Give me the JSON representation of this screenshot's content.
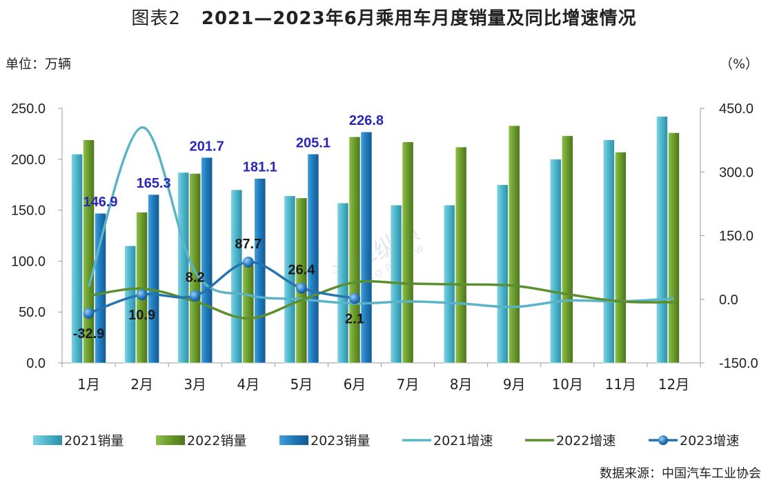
{
  "title": {
    "prefix": "图表2",
    "main": "2021—2023年6月乘用车月度销量及同比增速情况"
  },
  "unit_left": "单位：万辆",
  "unit_right": "（%）",
  "source": "数据来源：中国汽车工业协会",
  "watermark": {
    "cn": "汽车纵横",
    "en": "AUTO REVIEW"
  },
  "colors": {
    "s2021_bar": "#4bb3c9",
    "s2022_bar": "#6a9a2b",
    "s2023_bar": "#1f78b8",
    "s2021_line": "#5ab3c6",
    "s2022_line": "#5b8e2c",
    "s2023_line": "#2474b0"
  },
  "chart_data": {
    "type": "bar",
    "title": "2021—2023年6月乘用车月度销量及同比增速情况",
    "categories": [
      "1月",
      "2月",
      "3月",
      "4月",
      "5月",
      "6月",
      "7月",
      "8月",
      "9月",
      "10月",
      "11月",
      "12月"
    ],
    "ylim": [
      0,
      250
    ],
    "yticks": [
      "0.0",
      "50.0",
      "100.0",
      "150.0",
      "200.0",
      "250.0"
    ],
    "y2lim": [
      -150,
      450
    ],
    "y2ticks": [
      "-150.0",
      "0.0",
      "150.0",
      "300.0",
      "450.0"
    ],
    "series": [
      {
        "name": "2021销量",
        "kind": "bar",
        "values": [
          205,
          115,
          187,
          170,
          164,
          157,
          155,
          155,
          175,
          200,
          219,
          242
        ]
      },
      {
        "name": "2022销量",
        "kind": "bar",
        "values": [
          219,
          148,
          186,
          96,
          162,
          222,
          217,
          212,
          233,
          223,
          207,
          226
        ]
      },
      {
        "name": "2023销量",
        "kind": "bar",
        "values": [
          146.9,
          165.3,
          201.7,
          181.1,
          205.1,
          226.8,
          null,
          null,
          null,
          null,
          null,
          null
        ],
        "labels": [
          "146.9",
          "165.3",
          "201.7",
          "181.1",
          "205.1",
          "226.8"
        ]
      },
      {
        "name": "2021增速",
        "kind": "line",
        "axis": "right",
        "values": [
          30,
          405,
          65,
          10,
          0,
          -10,
          -5,
          -10,
          -18,
          -3,
          -5,
          2
        ]
      },
      {
        "name": "2022增速",
        "kind": "line",
        "axis": "right",
        "values": [
          8,
          25,
          -5,
          -45,
          -2,
          40,
          37,
          35,
          32,
          12,
          -5,
          -7
        ]
      },
      {
        "name": "2023增速",
        "kind": "line",
        "axis": "right",
        "values": [
          -32.9,
          10.9,
          8.2,
          87.7,
          26.4,
          2.1,
          null,
          null,
          null,
          null,
          null,
          null
        ],
        "labels": [
          "-32.9",
          "10.9",
          "8.2",
          "87.7",
          "26.4",
          "2.1"
        ]
      }
    ],
    "legend_position": "bottom",
    "grid": false
  }
}
